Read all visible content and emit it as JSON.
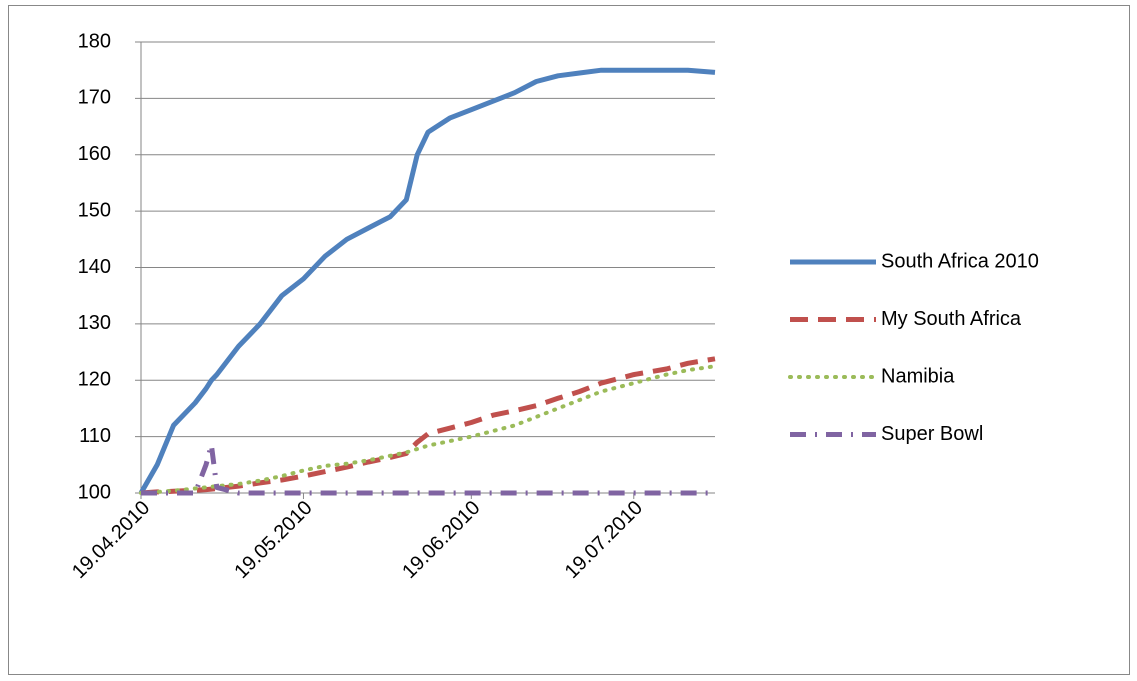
{
  "chart_data": {
    "type": "line",
    "x": [
      "2010-04-19",
      "2010-04-22",
      "2010-04-25",
      "2010-04-29",
      "2010-05-01",
      "2010-05-02",
      "2010-05-03",
      "2010-05-07",
      "2010-05-11",
      "2010-05-15",
      "2010-05-19",
      "2010-05-23",
      "2010-05-27",
      "2010-05-31",
      "2010-06-04",
      "2010-06-07",
      "2010-06-09",
      "2010-06-11",
      "2010-06-15",
      "2010-06-19",
      "2010-06-23",
      "2010-06-27",
      "2010-07-01",
      "2010-07-05",
      "2010-07-09",
      "2010-07-13",
      "2010-07-19",
      "2010-07-25",
      "2010-07-29",
      "2010-08-03"
    ],
    "series": [
      {
        "name": "South Africa 2010",
        "color": "#4f81bd",
        "values": [
          100,
          105,
          112,
          116,
          118.5,
          120,
          121,
          126,
          130,
          135,
          138,
          142,
          145,
          147,
          149,
          152,
          160,
          164,
          166.5,
          168,
          169.5,
          171,
          173,
          174,
          174.5,
          175,
          175,
          175,
          175,
          174.6
        ]
      },
      {
        "name": "My South Africa",
        "color": "#c0504d",
        "values": [
          100,
          100.2,
          100.3,
          100.5,
          100.6,
          100.7,
          100.8,
          101.2,
          101.8,
          102.3,
          103,
          103.8,
          104.6,
          105.5,
          106.3,
          107,
          109,
          110.5,
          111.5,
          112.5,
          113.8,
          114.6,
          115.5,
          116.8,
          118,
          119.5,
          121,
          122,
          123,
          123.8
        ]
      },
      {
        "name": "Namibia",
        "color": "#9bbb59",
        "values": [
          100,
          100.2,
          100.4,
          100.8,
          101,
          101.1,
          101.2,
          101.6,
          102.2,
          103,
          104,
          104.8,
          105.2,
          105.8,
          106.6,
          107.2,
          107.8,
          108.4,
          109.2,
          110,
          111,
          112,
          113.5,
          115,
          116.5,
          118,
          119.5,
          121,
          121.8,
          122.5
        ]
      },
      {
        "name": "Super Bowl",
        "color": "#8064a2",
        "values": [
          100,
          100,
          100,
          100,
          105,
          108.5,
          101,
          100,
          100,
          100,
          100,
          100,
          100,
          100,
          100,
          100,
          100,
          100,
          100,
          100,
          100,
          100,
          100,
          100,
          100,
          100,
          100,
          100,
          100,
          100
        ]
      }
    ],
    "xlim": [
      "2010-04-19",
      "2010-08-03"
    ],
    "xticks": [
      {
        "value": "2010-04-19",
        "label": "19.04.2010"
      },
      {
        "value": "2010-05-19",
        "label": "19.05.2010"
      },
      {
        "value": "2010-06-19",
        "label": "19.06.2010"
      },
      {
        "value": "2010-07-19",
        "label": "19.07.2010"
      }
    ],
    "ylim": [
      100,
      180
    ],
    "yticks": [
      100,
      110,
      120,
      130,
      140,
      150,
      160,
      170,
      180
    ],
    "grid": true,
    "legend": "right"
  }
}
